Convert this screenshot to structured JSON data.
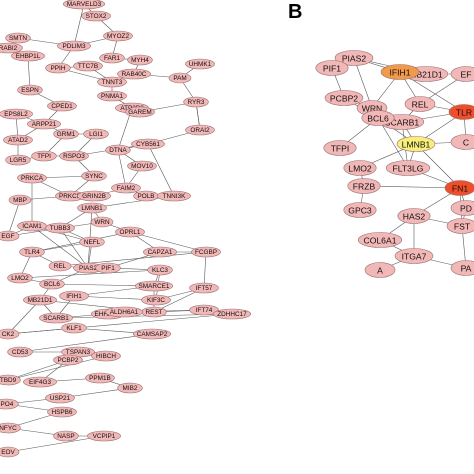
{
  "panel_b_letter": "B",
  "colors": {
    "node_default": "#f2b7b7",
    "node_high": "#f04e2a",
    "node_mid": "#f07a4a",
    "node_orange": "#f29a4a",
    "node_yellow": "#f7ef7a"
  },
  "panel_a": {
    "nodes": [
      "MARVELD3",
      "STOX2",
      "SMTN",
      "PDLIM3",
      "MYOZ2",
      "RABI2",
      "EHBP1L",
      "PPIH",
      "TTC7B",
      "FAR1",
      "MYH4",
      "UHMK1",
      "ESPN",
      "TNNT3",
      "RAB40C",
      "PAM",
      "CPED1",
      "PNMA1",
      "EPS8L2",
      "ARPP21",
      "ATP2B2",
      "GAREM",
      "RYR3",
      "ORAI2",
      "GRM1",
      "LGI1",
      "ATAD2",
      "LGR5",
      "TFPI",
      "RSPO3",
      "CYB561",
      "DTNA",
      "MOV10",
      "PRKCA",
      "SYNC",
      "MBP",
      "PRKCE",
      "GRIN2B",
      "FAIM2",
      "POLB",
      "TNNI3K",
      "LMNB1",
      "WRN",
      "EGF",
      "ICAM1",
      "TUBB3",
      "NEFL",
      "TLR4",
      "OPRL1",
      "CAPZA1",
      "FCGBP",
      "REL",
      "PIAS2",
      "PIF1",
      "KLC3",
      "LMO2",
      "BCL6",
      "SMARCE1",
      "IFIH1",
      "KIF3C",
      "IFT57",
      "REST",
      "MB21D1",
      "SCARB1",
      "EHHADH",
      "ALDH6A1",
      "IFT74",
      "ZDHHC17",
      "CK2",
      "KLF1",
      "CAMSAP2",
      "CD53",
      "TSPAN3",
      "HIBCH",
      "TBD9",
      "PCBP2",
      "EIF4G3",
      "PPM1B",
      "MIB2",
      "USP21",
      "IPO4",
      "HSPB6",
      "NFYC",
      "NASP",
      "VCPIP1",
      "EOV"
    ]
  },
  "panel_b": {
    "nodes": [
      "PIAS2",
      "MB21D1",
      "EF",
      "PIF1",
      "IFIH1",
      "PCBP2",
      "REL",
      "WRN",
      "SCARB1",
      "TLR",
      "BCL6",
      "C",
      "TFPI",
      "LMNB1",
      "LMO2",
      "FLT3LG",
      "FRZB",
      "FN1",
      "PD",
      "GPC3",
      "HAS2",
      "FST",
      "COL6A1",
      "ITGA7",
      "PA",
      "A"
    ]
  }
}
